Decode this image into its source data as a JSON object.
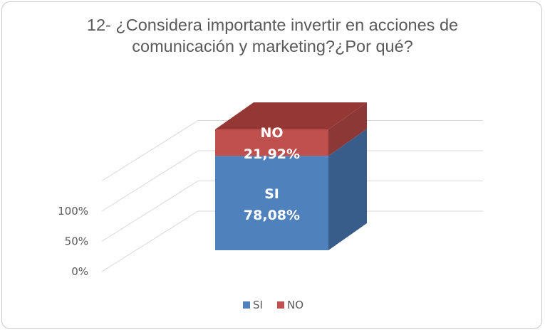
{
  "chart_data": {
    "type": "bar",
    "stacked": true,
    "percent_stacked": true,
    "three_d": true,
    "title": "12- ¿Considera importante invertir en acciones de comunicación y marketing?¿Por qué?",
    "title_lines": [
      "12- ¿Considera importante invertir en acciones de",
      "comunicación y marketing?¿Por qué?"
    ],
    "categories": [
      ""
    ],
    "series": [
      {
        "name": "SI",
        "values": [
          78.08
        ],
        "label_name": "SI",
        "label_value": "78,08%",
        "color": "#4f81bd",
        "side_color": "#385d8a",
        "top_color": "#4a72a8"
      },
      {
        "name": "NO",
        "values": [
          21.92
        ],
        "label_name": "NO",
        "label_value": "21,92%",
        "color": "#c0504d",
        "side_color": "#8c3836",
        "top_color": "#953735"
      }
    ],
    "y_ticks": [
      "0%",
      "50%",
      "100%"
    ],
    "ylim": [
      0,
      100
    ],
    "grid": true,
    "legend_position": "bottom",
    "colors": {
      "grid": "#d9d9d9",
      "text": "#595959"
    }
  }
}
